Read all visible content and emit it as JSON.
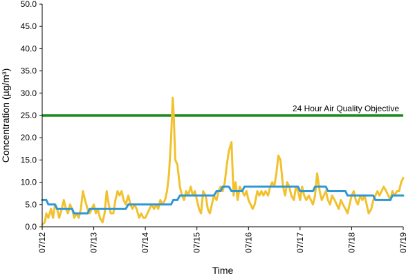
{
  "chart_data": {
    "type": "line",
    "title": "",
    "xlabel": "Time",
    "ylabel": "Concentration (µg/m³)",
    "ylim": [
      0,
      50
    ],
    "yticks": [
      "0.0",
      "5.0",
      "10.0",
      "15.0",
      "20.0",
      "25.0",
      "30.0",
      "35.0",
      "40.0",
      "45.0",
      "50.0"
    ],
    "xticks": [
      "07/12",
      "07/13",
      "07/14",
      "07/15",
      "07/16",
      "07/17",
      "07/18",
      "07/19"
    ],
    "grid": false,
    "legend": "none",
    "objective": {
      "value": 25,
      "label": "24 Hour Air Quality Objective",
      "color": "#1a8a1a"
    },
    "series": [
      {
        "color": "#f2c12e",
        "points": [
          [
            0,
            0.5
          ],
          [
            0.05,
            1
          ],
          [
            0.08,
            3
          ],
          [
            0.12,
            2
          ],
          [
            0.17,
            4
          ],
          [
            0.21,
            2
          ],
          [
            0.25,
            5
          ],
          [
            0.29,
            4
          ],
          [
            0.33,
            2
          ],
          [
            0.38,
            4
          ],
          [
            0.42,
            6
          ],
          [
            0.46,
            4
          ],
          [
            0.5,
            3
          ],
          [
            0.54,
            5
          ],
          [
            0.58,
            4
          ],
          [
            0.62,
            2
          ],
          [
            0.67,
            3
          ],
          [
            0.71,
            2
          ],
          [
            0.75,
            4
          ],
          [
            0.79,
            8
          ],
          [
            0.83,
            6
          ],
          [
            0.88,
            4
          ],
          [
            0.92,
            3
          ],
          [
            0.96,
            4
          ],
          [
            1.0,
            5
          ],
          [
            1.04,
            3
          ],
          [
            1.08,
            4
          ],
          [
            1.12,
            2
          ],
          [
            1.17,
            1
          ],
          [
            1.21,
            3
          ],
          [
            1.25,
            8
          ],
          [
            1.29,
            5
          ],
          [
            1.33,
            3
          ],
          [
            1.38,
            3
          ],
          [
            1.42,
            6
          ],
          [
            1.46,
            8
          ],
          [
            1.5,
            7
          ],
          [
            1.54,
            8
          ],
          [
            1.58,
            6
          ],
          [
            1.62,
            5
          ],
          [
            1.67,
            7
          ],
          [
            1.71,
            5
          ],
          [
            1.75,
            4
          ],
          [
            1.79,
            5
          ],
          [
            1.83,
            4
          ],
          [
            1.88,
            2
          ],
          [
            1.92,
            3
          ],
          [
            1.96,
            2
          ],
          [
            2.0,
            2
          ],
          [
            2.04,
            3
          ],
          [
            2.08,
            4
          ],
          [
            2.12,
            5
          ],
          [
            2.17,
            4
          ],
          [
            2.21,
            5
          ],
          [
            2.25,
            4
          ],
          [
            2.29,
            6
          ],
          [
            2.33,
            5
          ],
          [
            2.38,
            6
          ],
          [
            2.42,
            8
          ],
          [
            2.46,
            12
          ],
          [
            2.5,
            20
          ],
          [
            2.53,
            29
          ],
          [
            2.55,
            25
          ],
          [
            2.58,
            15
          ],
          [
            2.62,
            14
          ],
          [
            2.67,
            9
          ],
          [
            2.71,
            7
          ],
          [
            2.75,
            6
          ],
          [
            2.79,
            8
          ],
          [
            2.83,
            7
          ],
          [
            2.88,
            9
          ],
          [
            2.92,
            7
          ],
          [
            2.96,
            8
          ],
          [
            3.0,
            6
          ],
          [
            3.04,
            4
          ],
          [
            3.08,
            3
          ],
          [
            3.12,
            8
          ],
          [
            3.17,
            7
          ],
          [
            3.21,
            4
          ],
          [
            3.25,
            3
          ],
          [
            3.29,
            5
          ],
          [
            3.33,
            7
          ],
          [
            3.38,
            6
          ],
          [
            3.42,
            8
          ],
          [
            3.46,
            9
          ],
          [
            3.5,
            8
          ],
          [
            3.54,
            10
          ],
          [
            3.58,
            14
          ],
          [
            3.62,
            17
          ],
          [
            3.67,
            19
          ],
          [
            3.71,
            7
          ],
          [
            3.75,
            10
          ],
          [
            3.79,
            6
          ],
          [
            3.83,
            9
          ],
          [
            3.88,
            8
          ],
          [
            3.92,
            7
          ],
          [
            3.96,
            8
          ],
          [
            4.0,
            6
          ],
          [
            4.04,
            5
          ],
          [
            4.08,
            4
          ],
          [
            4.12,
            5
          ],
          [
            4.17,
            8
          ],
          [
            4.21,
            7
          ],
          [
            4.25,
            8
          ],
          [
            4.29,
            7
          ],
          [
            4.33,
            8
          ],
          [
            4.38,
            7
          ],
          [
            4.42,
            9
          ],
          [
            4.46,
            10
          ],
          [
            4.5,
            9
          ],
          [
            4.54,
            12
          ],
          [
            4.58,
            16
          ],
          [
            4.62,
            15
          ],
          [
            4.67,
            9
          ],
          [
            4.71,
            7
          ],
          [
            4.75,
            10
          ],
          [
            4.79,
            9
          ],
          [
            4.83,
            7
          ],
          [
            4.88,
            6
          ],
          [
            4.92,
            9
          ],
          [
            4.96,
            8
          ],
          [
            5.0,
            6
          ],
          [
            5.04,
            9
          ],
          [
            5.08,
            7
          ],
          [
            5.12,
            6
          ],
          [
            5.17,
            7
          ],
          [
            5.21,
            6
          ],
          [
            5.25,
            5
          ],
          [
            5.29,
            7
          ],
          [
            5.33,
            12
          ],
          [
            5.38,
            8
          ],
          [
            5.42,
            6
          ],
          [
            5.46,
            7
          ],
          [
            5.5,
            8
          ],
          [
            5.54,
            6
          ],
          [
            5.58,
            5
          ],
          [
            5.62,
            7
          ],
          [
            5.67,
            6
          ],
          [
            5.71,
            5
          ],
          [
            5.75,
            4
          ],
          [
            5.79,
            6
          ],
          [
            5.83,
            5
          ],
          [
            5.88,
            4
          ],
          [
            5.92,
            3
          ],
          [
            5.96,
            5
          ],
          [
            6.0,
            7
          ],
          [
            6.04,
            8
          ],
          [
            6.08,
            6
          ],
          [
            6.12,
            5
          ],
          [
            6.17,
            7
          ],
          [
            6.21,
            6
          ],
          [
            6.25,
            7
          ],
          [
            6.29,
            5
          ],
          [
            6.33,
            3
          ],
          [
            6.38,
            4
          ],
          [
            6.42,
            6
          ],
          [
            6.46,
            7
          ],
          [
            6.5,
            8
          ],
          [
            6.54,
            7
          ],
          [
            6.58,
            8
          ],
          [
            6.62,
            9
          ],
          [
            6.67,
            8
          ],
          [
            6.71,
            7
          ],
          [
            6.75,
            6
          ],
          [
            6.79,
            8
          ],
          [
            6.83,
            7
          ],
          [
            6.88,
            8
          ],
          [
            6.92,
            8
          ],
          [
            6.96,
            10
          ],
          [
            7.0,
            11
          ]
        ]
      },
      {
        "color": "#2f97d6",
        "points": [
          [
            0,
            6
          ],
          [
            0.08,
            6
          ],
          [
            0.12,
            5
          ],
          [
            0.25,
            5
          ],
          [
            0.29,
            4
          ],
          [
            0.58,
            4
          ],
          [
            0.62,
            3
          ],
          [
            0.88,
            3
          ],
          [
            0.92,
            4
          ],
          [
            1.62,
            4
          ],
          [
            1.67,
            5
          ],
          [
            2.5,
            5
          ],
          [
            2.54,
            6
          ],
          [
            2.62,
            6
          ],
          [
            2.67,
            7
          ],
          [
            3.33,
            7
          ],
          [
            3.38,
            8
          ],
          [
            3.46,
            8
          ],
          [
            3.5,
            9
          ],
          [
            3.62,
            9
          ],
          [
            3.67,
            8
          ],
          [
            3.88,
            8
          ],
          [
            3.92,
            9
          ],
          [
            4.96,
            9
          ],
          [
            5.0,
            8
          ],
          [
            5.25,
            8
          ],
          [
            5.29,
            9
          ],
          [
            5.5,
            9
          ],
          [
            5.54,
            8
          ],
          [
            5.88,
            8
          ],
          [
            5.92,
            7
          ],
          [
            6.42,
            7
          ],
          [
            6.46,
            6
          ],
          [
            6.75,
            6
          ],
          [
            6.79,
            7
          ],
          [
            7.0,
            7
          ]
        ]
      }
    ]
  }
}
